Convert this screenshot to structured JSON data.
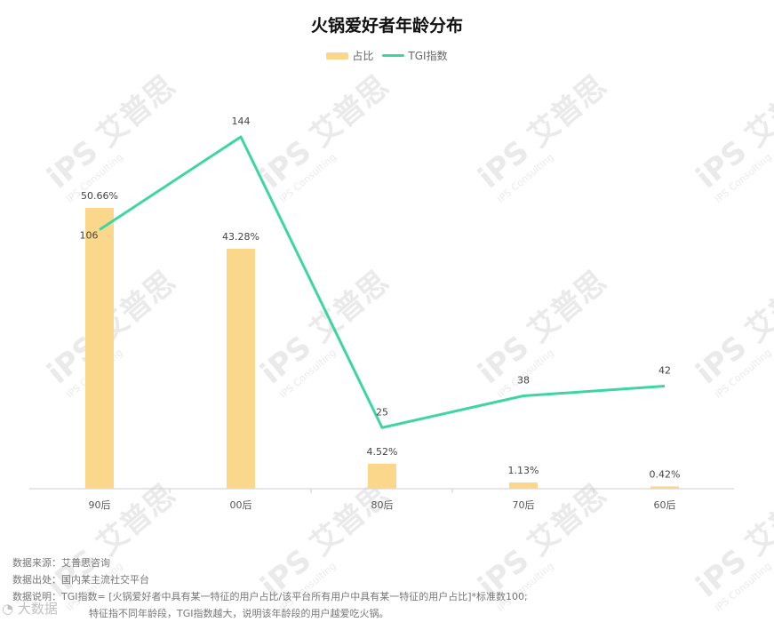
{
  "chart_data": {
    "type": "bar+line",
    "title": "火锅爱好者年龄分布",
    "categories": [
      "90后",
      "00后",
      "80后",
      "70后",
      "60后"
    ],
    "series": [
      {
        "name": "占比",
        "type": "bar",
        "values": [
          50.66,
          43.28,
          4.52,
          1.13,
          0.42
        ],
        "labels": [
          "50.66%",
          "43.28%",
          "4.52%",
          "1.13%",
          "0.42%"
        ],
        "color": "#FAD78A"
      },
      {
        "name": "TGI指数",
        "type": "line",
        "values": [
          106,
          144,
          25,
          38,
          42
        ],
        "labels": [
          "106",
          "144",
          "25",
          "38",
          "42"
        ],
        "color": "#3DD6A0"
      }
    ],
    "legend_position": "top-center",
    "grid": false
  },
  "notes": [
    "数据来源：艾普思咨询",
    "数据出处：国内某主流社交平台",
    "数据说明：TGI指数= [火锅爱好者中具有某一特征的用户占比/该平台所有用户中具有某一特征的用户占比]*标准数100;",
    "特征指不同年龄段，TGI指数越大，说明该年龄段的用户越爱吃火锅。"
  ],
  "watermark": "iPS 艾普思 IPS Consulting",
  "logo": "大数据"
}
